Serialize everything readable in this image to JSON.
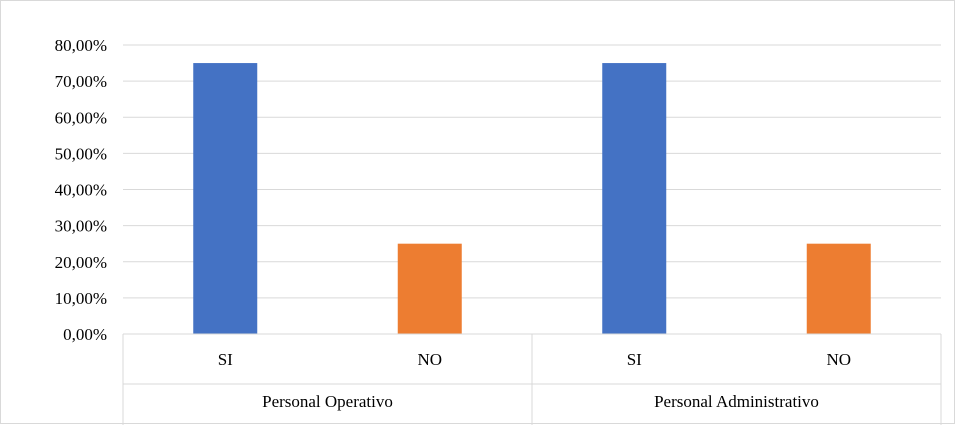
{
  "chart_data": {
    "type": "bar",
    "groups": [
      {
        "label": "Personal Operativo",
        "bars": [
          {
            "category": "SI",
            "value": 75.0,
            "color": "#4472c4"
          },
          {
            "category": "NO",
            "value": 25.0,
            "color": "#ed7d31"
          }
        ]
      },
      {
        "label": "Personal Administrativo",
        "bars": [
          {
            "category": "SI",
            "value": 75.0,
            "color": "#4472c4"
          },
          {
            "category": "NO",
            "value": 25.0,
            "color": "#ed7d31"
          }
        ]
      }
    ],
    "yticks": [
      "0,00%",
      "10,00%",
      "20,00%",
      "30,00%",
      "40,00%",
      "50,00%",
      "60,00%",
      "70,00%",
      "80,00%"
    ],
    "ylim": [
      0,
      80
    ],
    "grid": true,
    "legend": false,
    "title": "",
    "xlabel": "",
    "ylabel": ""
  }
}
